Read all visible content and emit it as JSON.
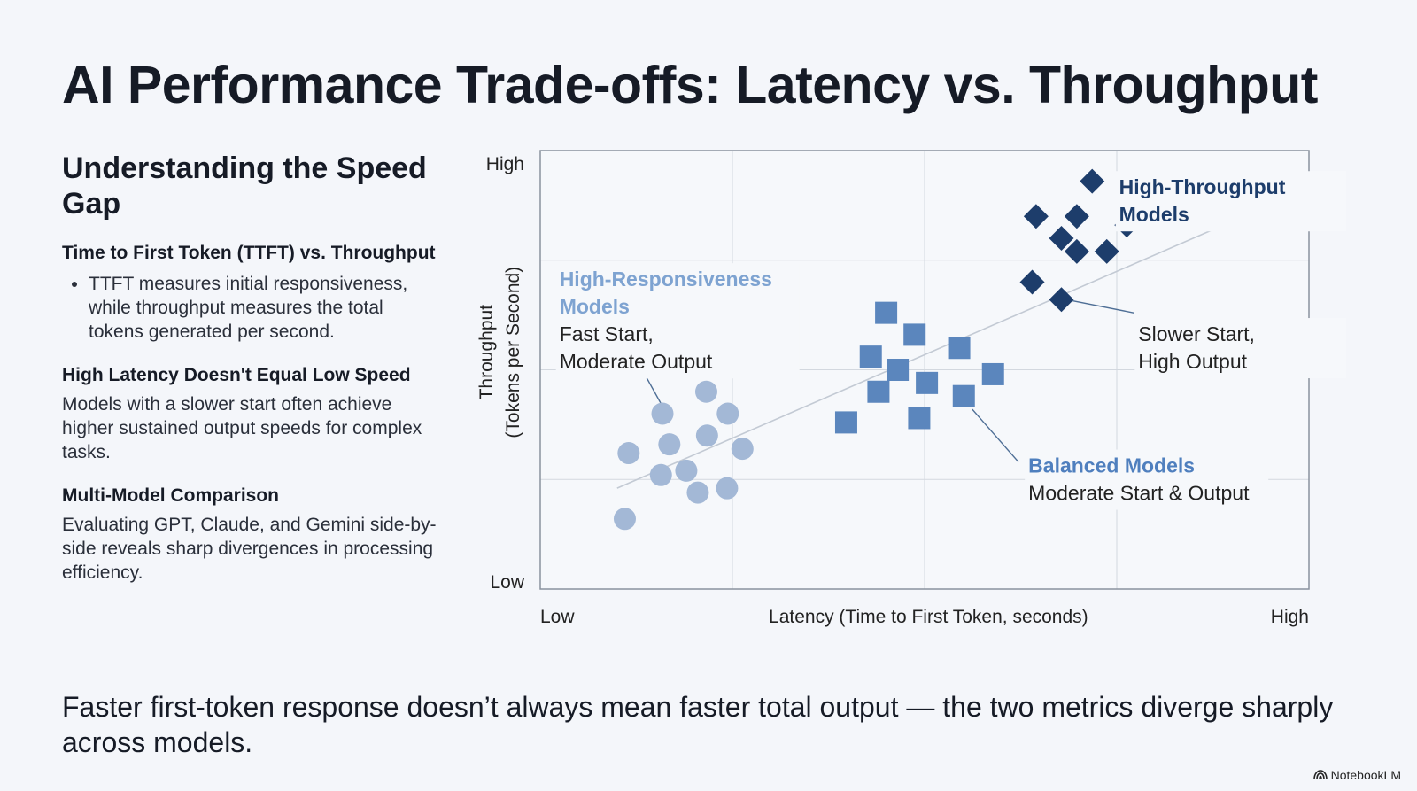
{
  "title": "AI Performance Trade-offs: Latency vs. Throughput",
  "left": {
    "heading": "Understanding the Speed Gap",
    "sections": [
      {
        "heading": "Time to First Token (TTFT) vs. Throughput",
        "bullet": "TTFT measures initial responsiveness, while throughput measures the total tokens generated per second."
      },
      {
        "heading": "High Latency Doesn't Equal Low Speed",
        "text": "Models with a slower start often achieve higher sustained output speeds for complex tasks."
      },
      {
        "heading": "Multi-Model Comparison",
        "text": "Evaluating GPT, Claude, and Gemini side-by-side reveals sharp divergences in processing efficiency."
      }
    ]
  },
  "chart_data": {
    "type": "scatter",
    "xlabel": "Latency (Time to First Token, seconds)",
    "ylabel_line1": "Throughput",
    "ylabel_line2": "(Tokens per Second)",
    "x_tick_low": "Low",
    "x_tick_high": "High",
    "y_tick_low": "Low",
    "y_tick_high": "High",
    "xlim": [
      0,
      1
    ],
    "ylim": [
      0,
      1
    ],
    "grid": true,
    "colors": {
      "High-Responsiveness Models": "#a3b8d6",
      "Balanced Models": "#5b86bd",
      "High-Throughput Models": "#1d3d6b",
      "trendline": "#c3cad4",
      "grid": "#d3d8df",
      "axis": "#8a929e"
    },
    "series": [
      {
        "name": "High-Responsiveness Models",
        "marker": "circle",
        "points": [
          [
            0.11,
            0.16
          ],
          [
            0.115,
            0.31
          ],
          [
            0.157,
            0.26
          ],
          [
            0.159,
            0.4
          ],
          [
            0.168,
            0.33
          ],
          [
            0.19,
            0.27
          ],
          [
            0.205,
            0.22
          ],
          [
            0.216,
            0.45
          ],
          [
            0.217,
            0.35
          ],
          [
            0.243,
            0.23
          ],
          [
            0.244,
            0.4
          ],
          [
            0.263,
            0.32
          ]
        ]
      },
      {
        "name": "Balanced Models",
        "marker": "square",
        "points": [
          [
            0.398,
            0.38
          ],
          [
            0.43,
            0.53
          ],
          [
            0.44,
            0.45
          ],
          [
            0.45,
            0.63
          ],
          [
            0.465,
            0.5
          ],
          [
            0.487,
            0.58
          ],
          [
            0.493,
            0.39
          ],
          [
            0.503,
            0.47
          ],
          [
            0.545,
            0.55
          ],
          [
            0.551,
            0.44
          ],
          [
            0.589,
            0.49
          ]
        ]
      },
      {
        "name": "High-Throughput Models",
        "marker": "diamond",
        "points": [
          [
            0.64,
            0.7
          ],
          [
            0.645,
            0.85
          ],
          [
            0.678,
            0.8
          ],
          [
            0.678,
            0.66
          ],
          [
            0.698,
            0.85
          ],
          [
            0.698,
            0.77
          ],
          [
            0.718,
            0.93
          ],
          [
            0.737,
            0.77
          ],
          [
            0.763,
            0.83
          ]
        ]
      }
    ],
    "trendline": [
      [
        0.1,
        0.23
      ],
      [
        0.915,
        0.85
      ]
    ],
    "annotations": [
      {
        "title_lines": [
          "High-Throughput",
          "Models"
        ],
        "text_lines": []
      },
      {
        "title_lines": [
          "High-Responsiveness",
          "Models"
        ],
        "text_lines": [
          "Fast Start,",
          "Moderate Output"
        ]
      },
      {
        "title_lines": [],
        "text_lines": [
          "Slower Start,",
          "High Output"
        ]
      },
      {
        "title_lines": [
          "Balanced Models"
        ],
        "text_lines": [
          "Moderate Start & Output"
        ]
      }
    ]
  },
  "footer": "Faster first-token response doesn’t always mean faster total output — the two metrics diverge sharply across models.",
  "brand": "NotebookLM"
}
